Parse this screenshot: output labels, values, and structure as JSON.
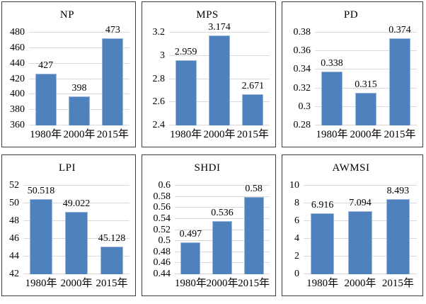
{
  "figure": {
    "description": "Grid of six landscape-index bar charts across three years",
    "rows": 2,
    "cols": 3
  },
  "style": {
    "bar_color": "#4f81bd",
    "bar_border": "#9db8da",
    "gridline_color": "#d9d9d9",
    "panel_border": "#3d3d3d",
    "text_color": "#000000",
    "background": "#ffffff"
  },
  "chart_data": [
    {
      "type": "bar",
      "title": "NP",
      "categories": [
        "1980年",
        "2000年",
        "2015年"
      ],
      "values": [
        427,
        398,
        473
      ],
      "value_labels": [
        "427",
        "398",
        "473"
      ],
      "ylim": [
        360,
        480
      ],
      "ytick_labels": [
        "360",
        "380",
        "400",
        "420",
        "440",
        "460",
        "480"
      ],
      "grid": true,
      "legend": "none"
    },
    {
      "type": "bar",
      "title": "MPS",
      "categories": [
        "1980年",
        "2000年",
        "2015年"
      ],
      "values": [
        2.959,
        3.174,
        2.671
      ],
      "value_labels": [
        "2.959",
        "3.174",
        "2.671"
      ],
      "ylim": [
        2.4,
        3.2
      ],
      "ytick_labels": [
        "2.4",
        "2.6",
        "2.8",
        "3",
        "3.2"
      ],
      "grid": true,
      "legend": "none"
    },
    {
      "type": "bar",
      "title": "PD",
      "categories": [
        "1980年",
        "2000年",
        "2015年"
      ],
      "values": [
        0.338,
        0.315,
        0.374
      ],
      "value_labels": [
        "0.338",
        "0.315",
        "0.374"
      ],
      "ylim": [
        0.28,
        0.38
      ],
      "ytick_labels": [
        "0.28",
        "0.3",
        "0.32",
        "0.34",
        "0.36",
        "0.38"
      ],
      "grid": true,
      "legend": "none"
    },
    {
      "type": "bar",
      "title": "LPI",
      "categories": [
        "1980年",
        "2000年",
        "2015年"
      ],
      "values": [
        50.518,
        49.022,
        45.128
      ],
      "value_labels": [
        "50.518",
        "49.022",
        "45.128"
      ],
      "ylim": [
        42,
        52
      ],
      "ytick_labels": [
        "42",
        "44",
        "46",
        "48",
        "50",
        "52"
      ],
      "grid": true,
      "legend": "none"
    },
    {
      "type": "bar",
      "title": "SHDI",
      "categories": [
        "1980年",
        "2000年",
        "2015年"
      ],
      "values": [
        0.497,
        0.536,
        0.58
      ],
      "value_labels": [
        "0.497",
        "0.536",
        "0.58"
      ],
      "ylim": [
        0.44,
        0.6
      ],
      "ytick_labels": [
        "0.44",
        "0.46",
        "0.48",
        "0.5",
        "0.52",
        "0.54",
        "0.56",
        "0.58",
        "0.6"
      ],
      "grid": true,
      "legend": "none"
    },
    {
      "type": "bar",
      "title": "AWMSI",
      "categories": [
        "1980年",
        "2000年",
        "2015年"
      ],
      "values": [
        6.916,
        7.094,
        8.493
      ],
      "value_labels": [
        "6.916",
        "7.094",
        "8.493"
      ],
      "ylim": [
        0,
        10
      ],
      "ytick_labels": [
        "0",
        "2",
        "4",
        "6",
        "8",
        "10"
      ],
      "grid": true,
      "legend": "none"
    }
  ]
}
